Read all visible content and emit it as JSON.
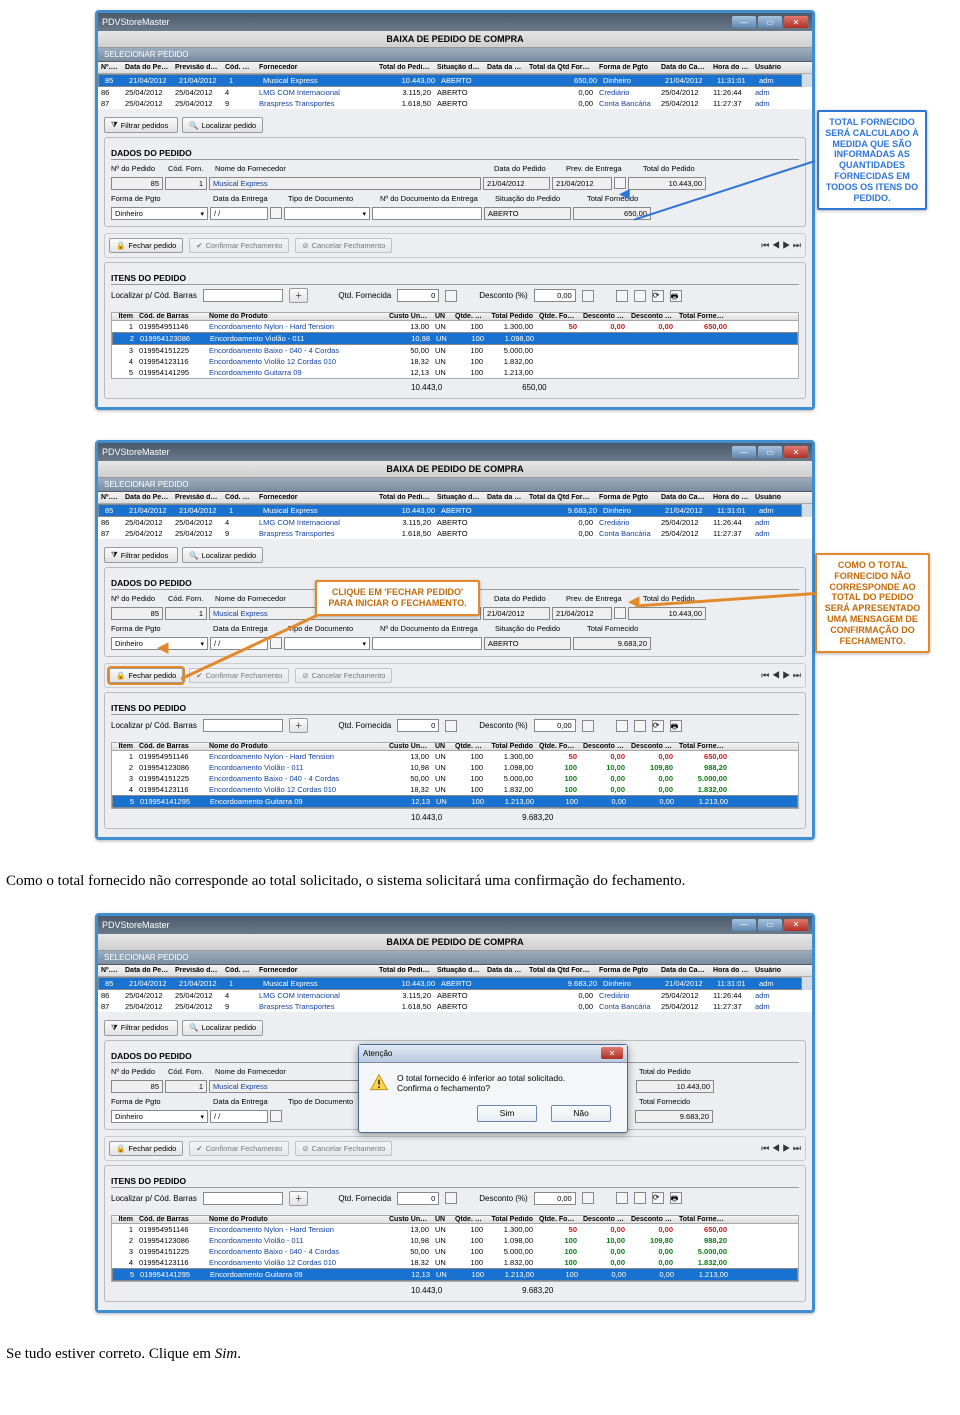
{
  "app": {
    "title": "PDVStoreMaster",
    "banner": "BAIXA DE PEDIDO DE COMPRA",
    "select": "SELECIONAR PEDIDO"
  },
  "topCols": [
    "Nº. do Ped.:",
    "Data do Pedido",
    "Previsão de Entrega",
    "Cód. do Forn.:",
    "Fornecedor",
    "Total do Pedido (R$)",
    "Situação do Pedido",
    "Data da Entrega",
    "Total da Qtd Fornecida (R$)",
    "Forma de Pgto",
    "Data do Cadastro",
    "Hora do Cadastro",
    "Usuário"
  ],
  "shot1": {
    "rows": [
      {
        "sel": true,
        "v": [
          "85",
          "21/04/2012",
          "21/04/2012",
          "1",
          "Musical Express",
          "10.443,00",
          "ABERTO",
          "",
          "650,00",
          "Dinheiro",
          "21/04/2012",
          "11:31:01",
          "adm"
        ]
      },
      {
        "sel": false,
        "v": [
          "86",
          "25/04/2012",
          "25/04/2012",
          "4",
          "LMG COM Internacional",
          "3.115,20",
          "ABERTO",
          "",
          "0,00",
          "Crediário",
          "25/04/2012",
          "11:26:44",
          "adm"
        ]
      },
      {
        "sel": false,
        "v": [
          "87",
          "25/04/2012",
          "25/04/2012",
          "9",
          "Braspress Transportes",
          "1.618,50",
          "ABERTO",
          "",
          "0,00",
          "Conta Bancária",
          "25/04/2012",
          "11:27:37",
          "adm"
        ]
      }
    ],
    "order": {
      "num": "85",
      "codForn": "1",
      "forn": "Musical Express",
      "data": "21/04/2012",
      "prev": "21/04/2012",
      "total": "10.443,00",
      "situacao": "ABERTO",
      "fornecido": "650,00",
      "pgto": "Dinheiro",
      "dataEntrega": "/ /"
    },
    "itemsSel": 1,
    "items": [
      {
        "i": "1",
        "cod": "019954951146",
        "nome": "Encordoamento Nylon - Hard Tension",
        "cu": "13,00",
        "un": "UN",
        "qp": "100",
        "tp": "1.300,00",
        "qf": "50",
        "d": "0,00",
        "dr": "0,00",
        "tf": "650,00",
        "style": "red"
      },
      {
        "i": "2",
        "cod": "019954123086",
        "nome": "Encordoamento Violão - 011",
        "cu": "10,98",
        "un": "UN",
        "qp": "100",
        "tp": "1.098,00",
        "qf": "",
        "d": "",
        "dr": "",
        "tf": ""
      },
      {
        "i": "3",
        "cod": "019954151225",
        "nome": "Encordoamento Baixo - 040 - 4 Cordas",
        "cu": "50,00",
        "un": "UN",
        "qp": "100",
        "tp": "5.000,00",
        "qf": "",
        "d": "",
        "dr": "",
        "tf": ""
      },
      {
        "i": "4",
        "cod": "019954123116",
        "nome": "Encordoamento Violão 12 Cordas  010",
        "cu": "18,32",
        "un": "UN",
        "qp": "100",
        "tp": "1.832,00",
        "qf": "",
        "d": "",
        "dr": "",
        "tf": ""
      },
      {
        "i": "5",
        "cod": "019954141295",
        "nome": "Encordoamento Guitarra 09",
        "cu": "12,13",
        "un": "UN",
        "qp": "100",
        "tp": "1.213,00",
        "qf": "",
        "d": "",
        "dr": "",
        "tf": ""
      }
    ],
    "foot": {
      "tp": "10.443,0",
      "tf": "650,00"
    },
    "callout": "TOTAL FORNECIDO SERÁ CALCULADO À MEDIDA QUE SÃO INFORMADAS AS QUANTIDADES FORNECIDAS EM TODOS OS ITENS DO PEDIDO."
  },
  "shot2": {
    "rows": [
      {
        "sel": true,
        "v": [
          "85",
          "21/04/2012",
          "21/04/2012",
          "1",
          "Musical Express",
          "10.443,00",
          "ABERTO",
          "",
          "9.683,20",
          "Dinheiro",
          "21/04/2012",
          "11:31:01",
          "adm"
        ]
      },
      {
        "sel": false,
        "v": [
          "86",
          "25/04/2012",
          "25/04/2012",
          "4",
          "LMG COM Internacional",
          "3.115,20",
          "ABERTO",
          "",
          "0,00",
          "Crediário",
          "25/04/2012",
          "11:26:44",
          "adm"
        ]
      },
      {
        "sel": false,
        "v": [
          "87",
          "25/04/2012",
          "25/04/2012",
          "9",
          "Braspress Transportes",
          "1.618,50",
          "ABERTO",
          "",
          "0,00",
          "Conta Bancária",
          "25/04/2012",
          "11:27:37",
          "adm"
        ]
      }
    ],
    "order": {
      "num": "85",
      "codForn": "1",
      "forn": "Musical Express",
      "data": "21/04/2012",
      "prev": "21/04/2012",
      "total": "10.443,00",
      "situacao": "ABERTO",
      "fornecido": "9.683,20",
      "pgto": "Dinheiro",
      "dataEntrega": "/ /"
    },
    "itemsSel": 4,
    "items": [
      {
        "i": "1",
        "cod": "019954951146",
        "nome": "Encordoamento Nylon - Hard Tension",
        "cu": "13,00",
        "un": "UN",
        "qp": "100",
        "tp": "1.300,00",
        "qf": "50",
        "d": "0,00",
        "dr": "0,00",
        "tf": "650,00",
        "style": "red"
      },
      {
        "i": "2",
        "cod": "019954123086",
        "nome": "Encordoamento Violão - 011",
        "cu": "10,98",
        "un": "UN",
        "qp": "100",
        "tp": "1.098,00",
        "qf": "100",
        "d": "10,00",
        "dr": "109,80",
        "tf": "988,20",
        "style": "grn"
      },
      {
        "i": "3",
        "cod": "019954151225",
        "nome": "Encordoamento Baixo - 040 - 4 Cordas",
        "cu": "50,00",
        "un": "UN",
        "qp": "100",
        "tp": "5.000,00",
        "qf": "100",
        "d": "0,00",
        "dr": "0,00",
        "tf": "5.000,00",
        "style": "grn"
      },
      {
        "i": "4",
        "cod": "019954123116",
        "nome": "Encordoamento Violão 12 Cordas  010",
        "cu": "18,32",
        "un": "UN",
        "qp": "100",
        "tp": "1.832,00",
        "qf": "100",
        "d": "0,00",
        "dr": "0,00",
        "tf": "1.832,00",
        "style": "grn"
      },
      {
        "i": "5",
        "cod": "019954141295",
        "nome": "Encordoamento Guitarra 09",
        "cu": "12,13",
        "un": "UN",
        "qp": "100",
        "tp": "1.213,00",
        "qf": "100",
        "d": "0,00",
        "dr": "0,00",
        "tf": "1.213,00",
        "style": "grn"
      }
    ],
    "foot": {
      "tp": "10.443,0",
      "tf": "9.683,20"
    },
    "callout": "COMO O TOTAL FORNECIDO NÃO CORRESPONDE AO TOTAL DO PEDIDO SERÁ APRESENTADO UMA MENSAGEM DE CONFIRMAÇÃO DO FECHAMENTO.",
    "tip": "CLIQUE EM 'FECHAR PEDIDO' PARA INICIAR O FECHAMENTO."
  },
  "shot3": {
    "order": {
      "num": "85",
      "codForn": "1",
      "forn": "Musical Express",
      "total": "10.443,00",
      "fornecido": "9.683,20",
      "pgto": "Dinheiro",
      "dataEntrega": "/ /"
    },
    "itemsSel": 4,
    "items": [
      {
        "i": "1",
        "cod": "019954951146",
        "nome": "Encordoamento Nylon - Hard Tension",
        "cu": "13,00",
        "un": "UN",
        "qp": "100",
        "tp": "1.300,00",
        "qf": "50",
        "d": "0,00",
        "dr": "0,00",
        "tf": "650,00",
        "style": "red"
      },
      {
        "i": "2",
        "cod": "019954123086",
        "nome": "Encordoamento Violão - 011",
        "cu": "10,98",
        "un": "UN",
        "qp": "100",
        "tp": "1.098,00",
        "qf": "100",
        "d": "10,00",
        "dr": "109,80",
        "tf": "988,20",
        "style": "grn"
      },
      {
        "i": "3",
        "cod": "019954151225",
        "nome": "Encordoamento Baixo - 040 - 4 Cordas",
        "cu": "50,00",
        "un": "UN",
        "qp": "100",
        "tp": "5.000,00",
        "qf": "100",
        "d": "0,00",
        "dr": "0,00",
        "tf": "5.000,00",
        "style": "grn"
      },
      {
        "i": "4",
        "cod": "019954123116",
        "nome": "Encordoamento Violão 12 Cordas  010",
        "cu": "18,32",
        "un": "UN",
        "qp": "100",
        "tp": "1.832,00",
        "qf": "100",
        "d": "0,00",
        "dr": "0,00",
        "tf": "1.832,00",
        "style": "grn"
      },
      {
        "i": "5",
        "cod": "019954141295",
        "nome": "Encordoamento Guitarra 09",
        "cu": "12,13",
        "un": "UN",
        "qp": "100",
        "tp": "1.213,00",
        "qf": "100",
        "d": "0,00",
        "dr": "0,00",
        "tf": "1.213,00",
        "style": "grn"
      }
    ],
    "foot": {
      "tp": "10.443,0",
      "tf": "9.683,20"
    },
    "dialog": {
      "title": "Atenção",
      "msg1": "O total fornecido é inferior ao total solicitado.",
      "msg2": "Confirma o fechamento?",
      "yes": "Sim",
      "no": "Não"
    }
  },
  "labels": {
    "filtrar": "Filtrar pedidos",
    "localizar": "Localizar pedido",
    "dados": "DADOS DO PEDIDO",
    "itens": "ITENS DO PEDIDO",
    "numPed": "Nº do Pedido",
    "codForn": "Cód. Forn.",
    "nomeForn": "Nome do Fornecedor",
    "dataPed": "Data do Pedido",
    "prevEnt": "Prev. de Entrega",
    "totPed": "Total do Pedido",
    "formaPgto": "Forma de Pgto",
    "dataEnt": "Data da Entrega",
    "tipoDoc": "Tipo de Documento",
    "numDoc": "Nº do Documento da Entrega",
    "situacao": "Situação do Pedido",
    "totForn": "Total Fornecido",
    "fechar": "Fechar pedido",
    "confF": "Confirmar Fechamento",
    "cancF": "Cancelar Fechamento",
    "locBarras": "Localizar p/ Cód. Barras",
    "qtdForn": "Qtd. Fornecida",
    "desc": "Desconto (%)",
    "item": "Item",
    "codBarras": "Cód. de Barras",
    "nomeProd": "Nome do Produto",
    "custo": "Custo Unitário",
    "un": "UN",
    "qtdPed": "Qtde. Pedida",
    "totPed2": "Total Pedido",
    "qtdForn2": "Qtde. Fornecida",
    "descPct": "Desconto (%)",
    "descRs": "Desconto (R$)",
    "totForn2": "Total Fornecido"
  },
  "text1": "Como o total fornecido não corresponde ao total solicitado, o sistema solicitará uma confirmação do fechamento.",
  "text2_a": "Se tudo estiver correto. Clique em ",
  "text2_b": "Sim",
  "text2_c": "."
}
